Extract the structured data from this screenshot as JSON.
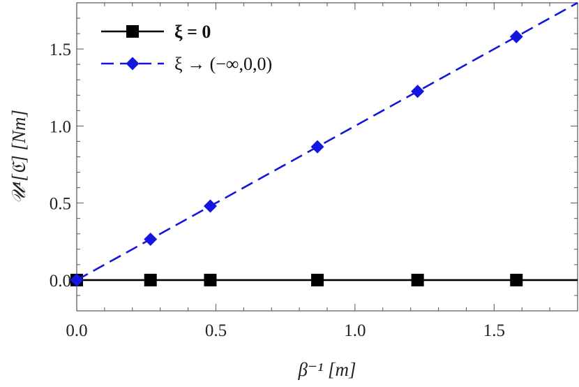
{
  "chart_data": {
    "type": "line",
    "xlabel": "β⁻¹ [m]",
    "ylabel": "𝒰¹[ℭ] [Nm]",
    "xlim": [
      0.0,
      1.8
    ],
    "ylim": [
      -0.2,
      1.8
    ],
    "x_ticks": [
      "0.0",
      "0.5",
      "1.0",
      "1.5"
    ],
    "y_ticks": [
      "0.0",
      "0.5",
      "1.0",
      "1.5"
    ],
    "grid": false,
    "legend_position": "top-left",
    "series": [
      {
        "name": "ξ = 0",
        "color": "#000000",
        "line_style": "solid",
        "marker": "square",
        "line": [
          [
            0.0,
            0.0
          ],
          [
            1.8,
            0.0
          ]
        ],
        "points": [
          [
            0.0,
            0.0
          ],
          [
            0.265,
            0.0
          ],
          [
            0.48,
            0.0
          ],
          [
            0.865,
            0.0
          ],
          [
            1.225,
            0.0
          ],
          [
            1.58,
            0.0
          ]
        ]
      },
      {
        "name": "ξ → (−∞,0,0)",
        "color": "#1515e0",
        "line_style": "dashed",
        "marker": "diamond",
        "line": [
          [
            0.0,
            0.0
          ],
          [
            1.8,
            1.8
          ]
        ],
        "points": [
          [
            0.0,
            0.0
          ],
          [
            0.265,
            0.265
          ],
          [
            0.48,
            0.48
          ],
          [
            0.865,
            0.865
          ],
          [
            1.225,
            1.225
          ],
          [
            1.58,
            1.58
          ]
        ]
      }
    ]
  }
}
